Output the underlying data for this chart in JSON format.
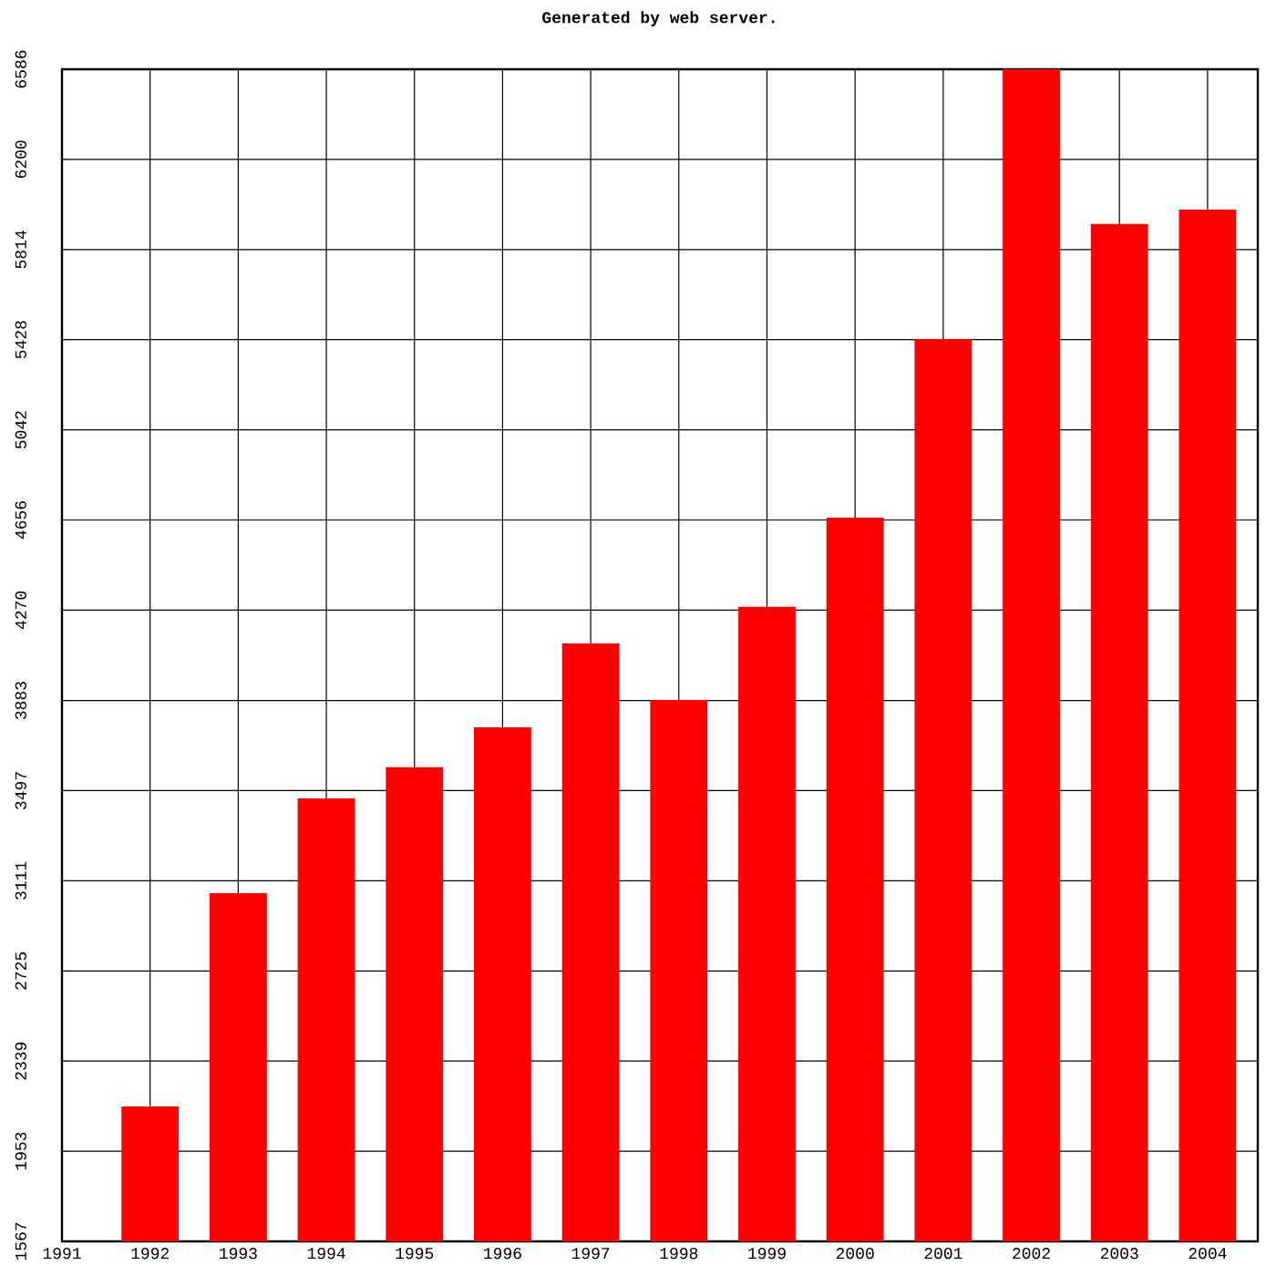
{
  "chart_data": {
    "type": "bar",
    "title": "Generated by web server.",
    "x": [
      1992,
      1993,
      1994,
      1995,
      1996,
      1997,
      1998,
      1999,
      2000,
      2001,
      2002,
      2003,
      2004
    ],
    "values": [
      2145,
      3058,
      3464,
      3597,
      3768,
      4127,
      3885,
      4284,
      4666,
      5431,
      6586,
      5923,
      5985
    ],
    "color": "#ff0000",
    "xlim": [
      1991,
      2004.57
    ],
    "xticks": [
      1991,
      1992,
      1993,
      1994,
      1995,
      1996,
      1997,
      1998,
      1999,
      2000,
      2001,
      2002,
      2003,
      2004
    ],
    "ylim": [
      1567,
      6586
    ],
    "yticks": [
      1567,
      1953,
      2339,
      2725,
      3111,
      3497,
      3883,
      4270,
      4656,
      5042,
      5428,
      5814,
      6200,
      6586
    ],
    "grid": true
  }
}
